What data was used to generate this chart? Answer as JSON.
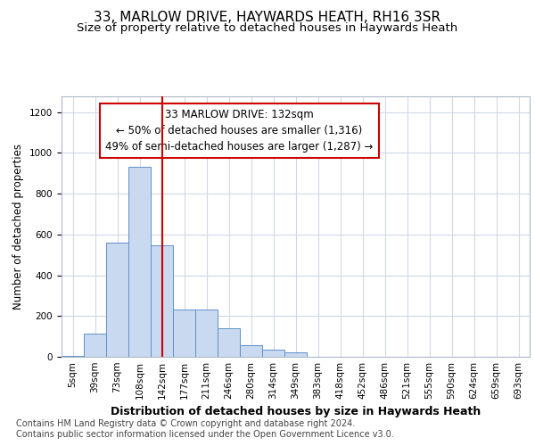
{
  "title": "33, MARLOW DRIVE, HAYWARDS HEATH, RH16 3SR",
  "subtitle": "Size of property relative to detached houses in Haywards Heath",
  "xlabel": "Distribution of detached houses by size in Haywards Heath",
  "ylabel": "Number of detached properties",
  "bar_labels": [
    "5sqm",
    "39sqm",
    "73sqm",
    "108sqm",
    "142sqm",
    "177sqm",
    "211sqm",
    "246sqm",
    "280sqm",
    "314sqm",
    "349sqm",
    "383sqm",
    "418sqm",
    "452sqm",
    "486sqm",
    "521sqm",
    "555sqm",
    "590sqm",
    "624sqm",
    "659sqm",
    "693sqm"
  ],
  "bar_heights": [
    5,
    115,
    558,
    930,
    548,
    232,
    232,
    140,
    58,
    35,
    20,
    0,
    0,
    0,
    0,
    0,
    0,
    0,
    0,
    0,
    0
  ],
  "bar_color": "#c8d9f0",
  "bar_edge_color": "#6090c8",
  "vline_x": 4,
  "vline_color": "#cc0000",
  "annotation_text": "33 MARLOW DRIVE: 132sqm\n← 50% of detached houses are smaller (1,316)\n49% of semi-detached houses are larger (1,287) →",
  "annotation_box_color": "#ffffff",
  "annotation_box_edge_color": "#cc0000",
  "ylim": [
    0,
    1280
  ],
  "yticks": [
    0,
    200,
    400,
    600,
    800,
    1000,
    1200
  ],
  "footer": "Contains HM Land Registry data © Crown copyright and database right 2024.\nContains public sector information licensed under the Open Government Licence v3.0.",
  "title_fontsize": 11,
  "subtitle_fontsize": 9.5,
  "xlabel_fontsize": 9,
  "ylabel_fontsize": 8.5,
  "tick_fontsize": 7.5,
  "annotation_fontsize": 8.5,
  "footer_fontsize": 7,
  "background_color": "#ffffff",
  "grid_color": "#d0d8e8"
}
